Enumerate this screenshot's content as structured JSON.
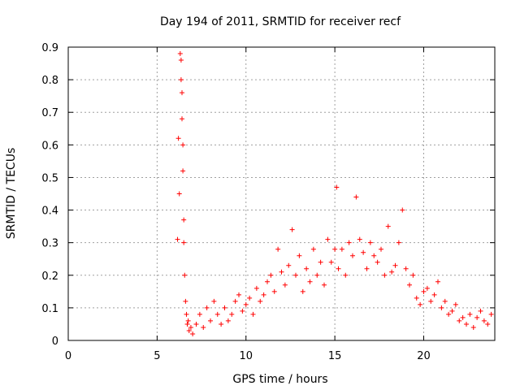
{
  "chart_data": {
    "type": "scatter",
    "title": "Day 194 of 2011, SRMTID for receiver recf",
    "xlabel": "GPS time / hours",
    "ylabel": "SRMTID / TECUs",
    "xlim": [
      0,
      24
    ],
    "ylim": [
      0,
      0.9
    ],
    "xticks": [
      0,
      5,
      10,
      15,
      20
    ],
    "xtick_labels": [
      "0",
      "5",
      "10",
      "15",
      "20"
    ],
    "yticks": [
      0,
      0.1,
      0.2,
      0.3,
      0.4,
      0.5,
      0.6,
      0.7,
      0.8,
      0.9
    ],
    "ytick_labels": [
      "0",
      "0.1",
      "0.2",
      "0.3",
      "0.4",
      "0.5",
      "0.6",
      "0.7",
      "0.8",
      "0.9"
    ],
    "grid": true,
    "marker": "+",
    "color": "#ff0000",
    "series": [
      {
        "name": "SRMTID",
        "x": [
          6.15,
          6.2,
          6.25,
          6.3,
          6.35,
          6.35,
          6.4,
          6.4,
          6.45,
          6.45,
          6.5,
          6.5,
          6.55,
          6.6,
          6.65,
          6.7,
          6.75,
          6.8,
          6.9,
          7.0,
          7.2,
          7.4,
          7.6,
          7.8,
          8.0,
          8.2,
          8.4,
          8.6,
          8.8,
          9.0,
          9.2,
          9.4,
          9.6,
          9.8,
          10.0,
          10.2,
          10.4,
          10.6,
          10.8,
          11.0,
          11.2,
          11.4,
          11.6,
          11.8,
          12.0,
          12.2,
          12.4,
          12.6,
          12.8,
          13.0,
          13.2,
          13.4,
          13.6,
          13.8,
          14.0,
          14.2,
          14.4,
          14.6,
          14.8,
          15.0,
          15.1,
          15.2,
          15.4,
          15.6,
          15.8,
          16.0,
          16.2,
          16.4,
          16.6,
          16.8,
          17.0,
          17.2,
          17.4,
          17.6,
          17.8,
          18.0,
          18.2,
          18.4,
          18.6,
          18.8,
          19.0,
          19.2,
          19.4,
          19.6,
          19.8,
          20.0,
          20.2,
          20.4,
          20.6,
          20.8,
          21.0,
          21.2,
          21.4,
          21.6,
          21.8,
          22.0,
          22.2,
          22.4,
          22.6,
          22.8,
          23.0,
          23.2,
          23.4,
          23.6,
          23.8
        ],
        "y": [
          0.31,
          0.62,
          0.45,
          0.88,
          0.86,
          0.8,
          0.76,
          0.68,
          0.6,
          0.52,
          0.37,
          0.3,
          0.2,
          0.12,
          0.08,
          0.05,
          0.06,
          0.03,
          0.04,
          0.02,
          0.05,
          0.08,
          0.04,
          0.1,
          0.06,
          0.12,
          0.08,
          0.05,
          0.1,
          0.06,
          0.08,
          0.12,
          0.14,
          0.09,
          0.11,
          0.13,
          0.08,
          0.16,
          0.12,
          0.14,
          0.18,
          0.2,
          0.15,
          0.28,
          0.21,
          0.17,
          0.23,
          0.34,
          0.2,
          0.26,
          0.15,
          0.22,
          0.18,
          0.28,
          0.2,
          0.24,
          0.17,
          0.31,
          0.24,
          0.28,
          0.47,
          0.22,
          0.28,
          0.2,
          0.3,
          0.26,
          0.44,
          0.31,
          0.27,
          0.22,
          0.3,
          0.26,
          0.24,
          0.28,
          0.2,
          0.35,
          0.21,
          0.23,
          0.3,
          0.4,
          0.22,
          0.17,
          0.2,
          0.13,
          0.11,
          0.15,
          0.16,
          0.12,
          0.14,
          0.18,
          0.1,
          0.12,
          0.08,
          0.09,
          0.11,
          0.06,
          0.07,
          0.05,
          0.08,
          0.04,
          0.07,
          0.09,
          0.06,
          0.05,
          0.08
        ]
      }
    ]
  }
}
